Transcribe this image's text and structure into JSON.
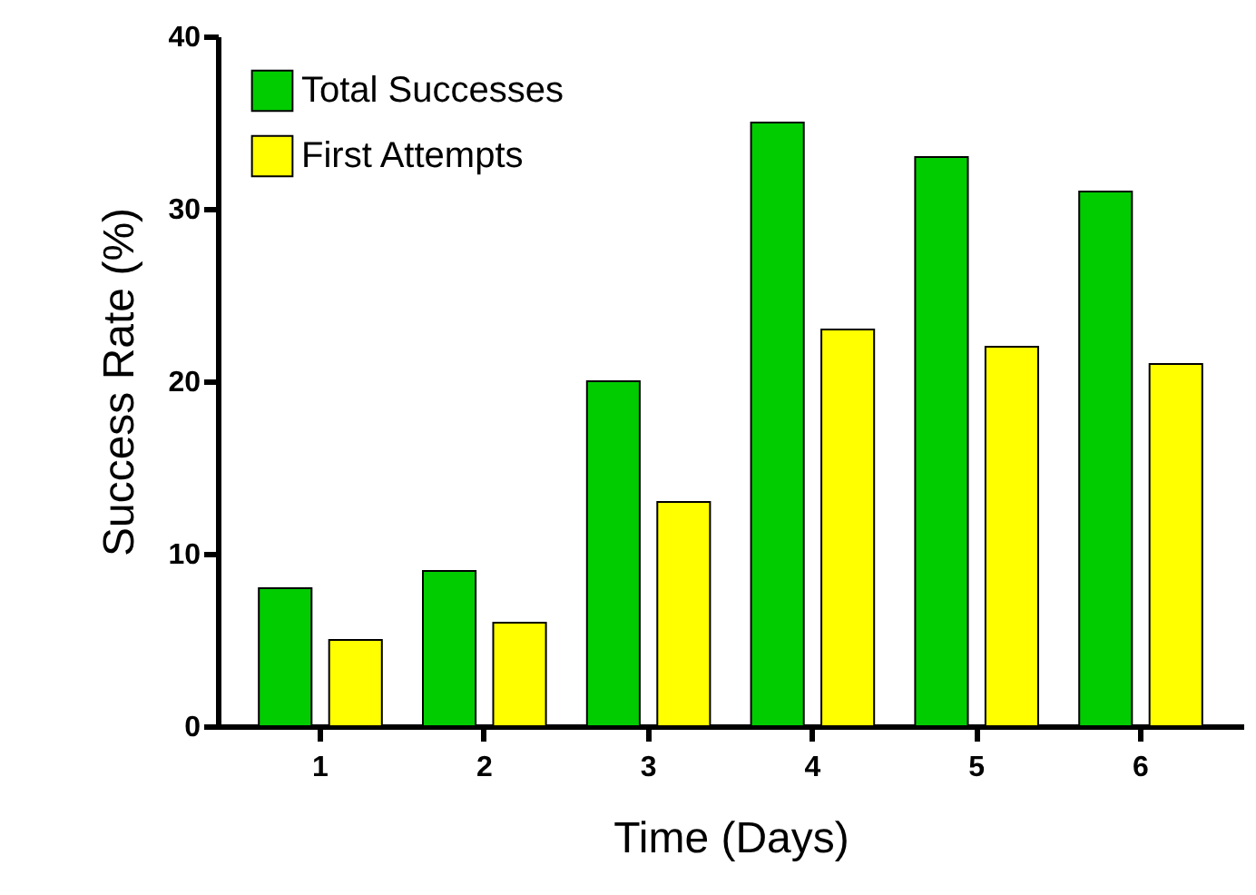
{
  "chart_data": {
    "type": "bar",
    "xlabel": "Time (Days)",
    "ylabel": "Success Rate (%)",
    "categories": [
      "1",
      "2",
      "3",
      "4",
      "5",
      "6"
    ],
    "series": [
      {
        "name": "Total Successes",
        "color": "#00cc00",
        "values": [
          8,
          9,
          20,
          35,
          33,
          31
        ]
      },
      {
        "name": "First Attempts",
        "color": "#ffff00",
        "values": [
          5,
          6,
          13,
          23,
          22,
          21
        ]
      }
    ],
    "ylim": [
      0,
      40
    ],
    "yticks": [
      0,
      10,
      20,
      30,
      40
    ],
    "grid": false,
    "legend": "top left"
  }
}
